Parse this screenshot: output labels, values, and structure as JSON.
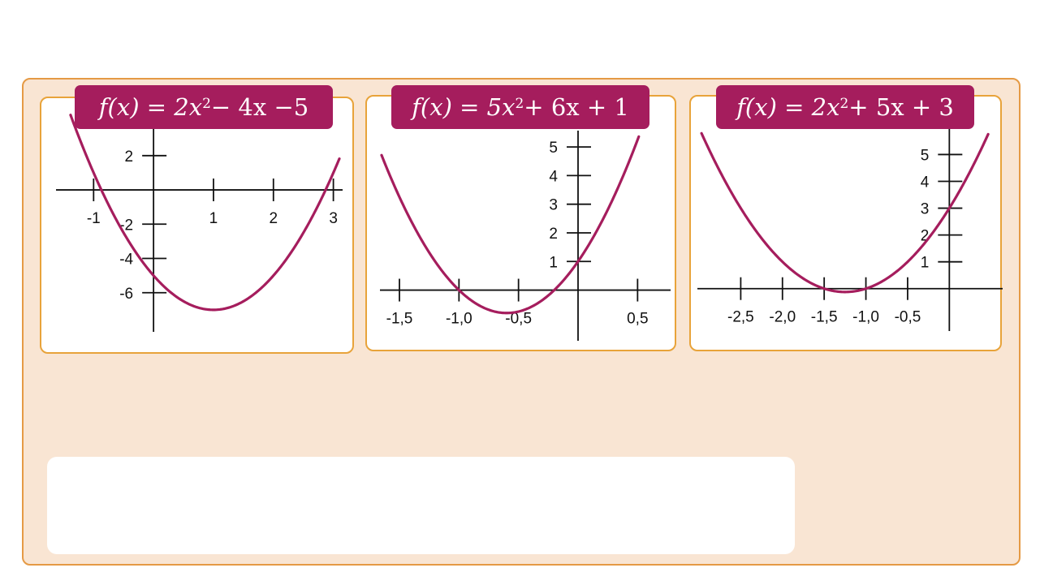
{
  "chart_data": [
    {
      "type": "line",
      "title": "f(x) = 2x² − 4x −5",
      "title_parts": {
        "fx": "f(x)",
        "eq": "=",
        "lead": "2x",
        "exp": "2",
        "rest": " − 4x −5"
      },
      "series": [
        {
          "a": 2,
          "b": -4,
          "c": -5,
          "color": "#a51d5d"
        }
      ],
      "x_ticks": [
        -1,
        1,
        2,
        3
      ],
      "x_tick_labels": [
        "-1",
        "1",
        "2",
        "3"
      ],
      "y_ticks": [
        2,
        -2,
        -4,
        -6
      ],
      "y_tick_labels": [
        "2",
        "-2",
        "-4",
        "-6"
      ],
      "xlim": [
        -1.6,
        3.1
      ],
      "ylim": [
        -8,
        4.5
      ]
    },
    {
      "type": "line",
      "title": "f(x) = 5x² + 6x + 1",
      "title_parts": {
        "fx": "f(x)",
        "eq": "=",
        "lead": "5x",
        "exp": "2",
        "rest": " + 6x + 1"
      },
      "series": [
        {
          "a": 5,
          "b": 6,
          "c": 1,
          "color": "#a51d5d"
        }
      ],
      "x_ticks": [
        -1.5,
        -1.0,
        -0.5,
        0.5
      ],
      "x_tick_labels": [
        "-1,5",
        "-1,0",
        "-0,5",
        "0,5"
      ],
      "y_ticks": [
        5,
        4,
        3,
        2,
        1
      ],
      "y_tick_labels": [
        "5",
        "4",
        "3",
        "2",
        "1"
      ],
      "xlim": [
        -1.65,
        0.75
      ],
      "ylim": [
        -1.6,
        5.4
      ]
    },
    {
      "type": "line",
      "title": "f(x) = 2x² + 5x + 3",
      "title_parts": {
        "fx": "f(x)",
        "eq": "=",
        "lead": "2x",
        "exp": "2",
        "rest": " + 5x + 3"
      },
      "series": [
        {
          "a": 2,
          "b": 5,
          "c": 3,
          "color": "#a51d5d"
        }
      ],
      "x_ticks": [
        -2.5,
        -2.0,
        -1.5,
        -1.0,
        -0.5
      ],
      "x_tick_labels": [
        "-2,5",
        "-2,0",
        "-1,5",
        "-1,0",
        "-0,5"
      ],
      "y_ticks": [
        5,
        4,
        3,
        2,
        1
      ],
      "y_tick_labels": [
        "5",
        "4",
        "3",
        "2",
        "1"
      ],
      "xlim": [
        -3.0,
        0.6
      ],
      "ylim": [
        -1.4,
        5.8
      ]
    }
  ]
}
